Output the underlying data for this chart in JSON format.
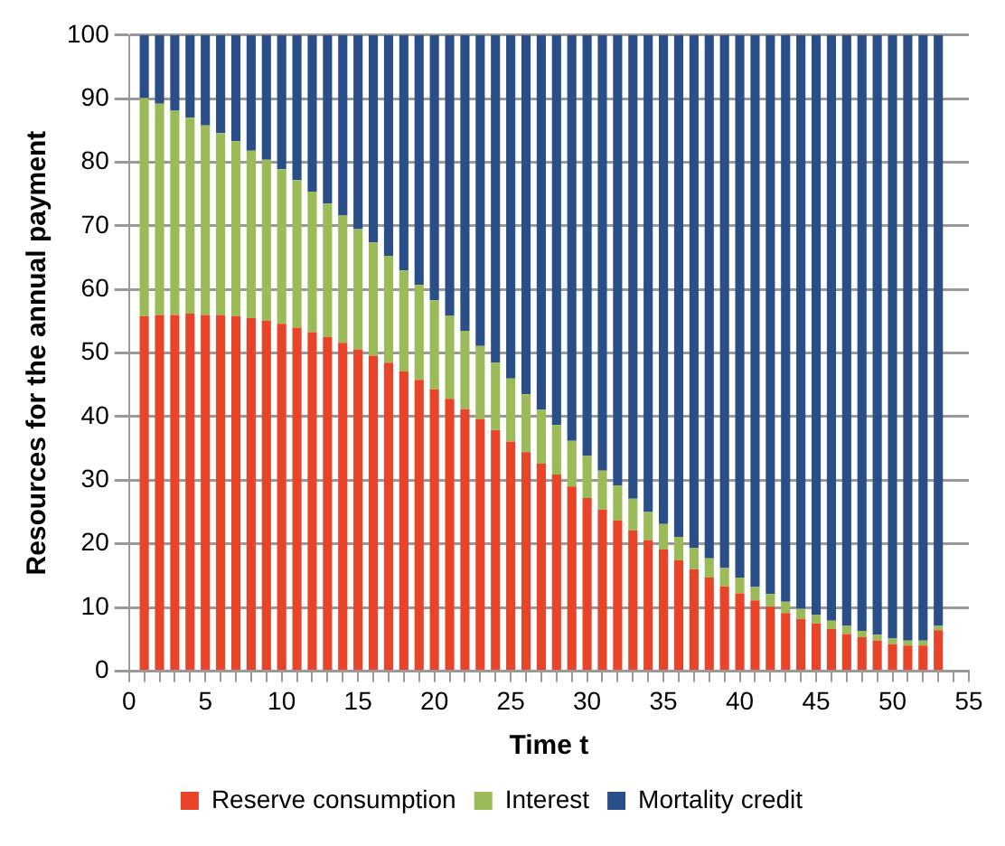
{
  "chart_data": {
    "type": "bar",
    "stacked": true,
    "xlabel": "Time t",
    "ylabel": "Resources for the annual payment",
    "x": [
      1,
      2,
      3,
      4,
      5,
      6,
      7,
      8,
      9,
      10,
      11,
      12,
      13,
      14,
      15,
      16,
      17,
      18,
      19,
      20,
      21,
      22,
      23,
      24,
      25,
      26,
      27,
      28,
      29,
      30,
      31,
      32,
      33,
      34,
      35,
      36,
      37,
      38,
      39,
      40,
      41,
      42,
      43,
      44,
      45,
      46,
      47,
      48,
      49,
      50,
      51,
      52,
      53
    ],
    "series": [
      {
        "name": "Reserve consumption",
        "color": "#e8442a",
        "values": [
          55.8,
          56.0,
          56.0,
          56.2,
          56.0,
          56.0,
          55.8,
          55.5,
          55.1,
          54.6,
          54.0,
          53.3,
          52.5,
          51.6,
          50.6,
          49.6,
          48.5,
          47.1,
          45.8,
          44.3,
          42.8,
          41.2,
          39.6,
          37.9,
          36.1,
          34.4,
          32.6,
          30.9,
          29.0,
          27.2,
          25.4,
          23.7,
          22.1,
          20.6,
          19.1,
          17.4,
          16.0,
          14.7,
          13.3,
          12.2,
          11.1,
          10.1,
          9.1,
          8.2,
          7.5,
          6.6,
          5.8,
          5.3,
          4.8,
          4.2,
          4.0,
          4.0,
          6.4
        ]
      },
      {
        "name": "Interest",
        "color": "#9bbb59",
        "values": [
          34.3,
          33.2,
          32.1,
          30.8,
          29.8,
          28.6,
          27.5,
          26.3,
          25.3,
          24.3,
          23.2,
          22.1,
          21.0,
          20.0,
          18.9,
          17.8,
          16.8,
          15.9,
          14.9,
          14.0,
          13.1,
          12.3,
          11.5,
          10.6,
          9.9,
          9.1,
          8.5,
          7.8,
          7.2,
          6.6,
          6.1,
          5.5,
          5.0,
          4.4,
          4.0,
          3.7,
          3.3,
          3.0,
          2.9,
          2.5,
          2.1,
          2.0,
          1.8,
          1.6,
          1.3,
          1.3,
          1.3,
          1.0,
          0.9,
          0.9,
          0.8,
          0.8,
          0.7
        ]
      },
      {
        "name": "Mortality credit",
        "color": "#2a4f88",
        "values": [
          9.9,
          10.8,
          11.9,
          13.0,
          14.2,
          15.4,
          16.7,
          18.2,
          19.6,
          21.1,
          22.8,
          24.6,
          26.5,
          28.4,
          30.5,
          32.6,
          34.7,
          37.0,
          39.3,
          41.7,
          44.1,
          46.5,
          48.9,
          51.5,
          54.0,
          56.5,
          58.9,
          61.3,
          63.8,
          66.2,
          68.5,
          70.8,
          72.9,
          75.0,
          76.9,
          78.9,
          80.7,
          82.3,
          83.8,
          85.3,
          86.8,
          87.9,
          89.1,
          90.2,
          91.2,
          92.1,
          92.9,
          93.7,
          94.3,
          94.9,
          95.2,
          95.2,
          92.9
        ]
      }
    ],
    "xlim": [
      0,
      55
    ],
    "xticks": [
      0,
      {
        "value": 1,
        "label": null
      },
      {
        "value": 2,
        "label": null
      },
      {
        "value": 3,
        "label": null
      },
      {
        "value": 4,
        "label": null
      },
      5,
      {
        "value": 6,
        "label": null
      },
      {
        "value": 7,
        "label": null
      },
      {
        "value": 8,
        "label": null
      },
      {
        "value": 9,
        "label": null
      },
      10,
      {
        "value": 11,
        "label": null
      },
      {
        "value": 12,
        "label": null
      },
      {
        "value": 13,
        "label": null
      },
      {
        "value": 14,
        "label": null
      },
      15,
      {
        "value": 16,
        "label": null
      },
      {
        "value": 17,
        "label": null
      },
      {
        "value": 18,
        "label": null
      },
      {
        "value": 19,
        "label": null
      },
      20,
      {
        "value": 21,
        "label": null
      },
      {
        "value": 22,
        "label": null
      },
      {
        "value": 23,
        "label": null
      },
      {
        "value": 24,
        "label": null
      },
      25,
      {
        "value": 26,
        "label": null
      },
      {
        "value": 27,
        "label": null
      },
      {
        "value": 28,
        "label": null
      },
      {
        "value": 29,
        "label": null
      },
      30,
      {
        "value": 31,
        "label": null
      },
      {
        "value": 32,
        "label": null
      },
      {
        "value": 33,
        "label": null
      },
      {
        "value": 34,
        "label": null
      },
      35,
      {
        "value": 36,
        "label": null
      },
      {
        "value": 37,
        "label": null
      },
      {
        "value": 38,
        "label": null
      },
      {
        "value": 39,
        "label": null
      },
      40,
      {
        "value": 41,
        "label": null
      },
      {
        "value": 42,
        "label": null
      },
      {
        "value": 43,
        "label": null
      },
      {
        "value": 44,
        "label": null
      },
      45,
      {
        "value": 46,
        "label": null
      },
      {
        "value": 47,
        "label": null
      },
      {
        "value": 48,
        "label": null
      },
      {
        "value": 49,
        "label": null
      },
      50,
      {
        "value": 51,
        "label": null
      },
      {
        "value": 52,
        "label": null
      },
      {
        "value": 53,
        "label": null
      },
      {
        "value": 54,
        "label": null
      },
      55
    ],
    "ylim": [
      0,
      100
    ],
    "yticks": [
      0,
      10,
      20,
      30,
      40,
      50,
      60,
      70,
      80,
      90,
      100
    ],
    "grid": "y",
    "legend": "bottom"
  }
}
